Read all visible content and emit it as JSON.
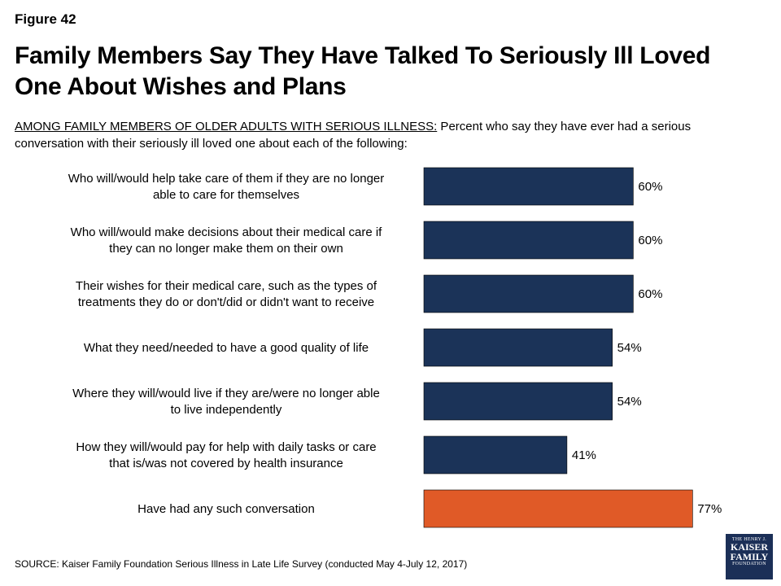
{
  "figure_label": "Figure 42",
  "title": "Family Members Say They Have Talked To Seriously Ill Loved One About Wishes and Plans",
  "subtitle_lead": "AMONG FAMILY MEMBERS OF OLDER ADULTS WITH SERIOUS ILLNESS:",
  "subtitle_rest": " Percent who say they have ever had a serious conversation with their seriously ill loved one about each of the following:",
  "source": "SOURCE: Kaiser Family Foundation Serious Illness in Late Life Survey (conducted May 4-July 12, 2017)",
  "logo": {
    "line1": "THE HENRY J.",
    "line2": "KAISER",
    "line3": "FAMILY",
    "line4": "FOUNDATION"
  },
  "chart_data": {
    "type": "bar",
    "orientation": "horizontal",
    "categories": [
      [
        "Who will/would help take care of them if they are no longer",
        "able to care for themselves"
      ],
      [
        "Who will/would make decisions about their medical care if",
        "they can no longer make them on their own"
      ],
      [
        "Their wishes for their medical care, such as the types of",
        "treatments they do or don't/did or didn't want to receive"
      ],
      [
        "What they need/needed to have a good quality of life"
      ],
      [
        "Where they will/would live if they are/were no longer able",
        "to live independently"
      ],
      [
        "How they will/would pay for help with daily tasks or care",
        "that is/was not covered by health insurance"
      ],
      [
        "Have had any such conversation"
      ]
    ],
    "values": [
      60,
      60,
      60,
      54,
      54,
      41,
      77
    ],
    "value_labels": [
      "60%",
      "60%",
      "60%",
      "54%",
      "54%",
      "41%",
      "77%"
    ],
    "colors": [
      "#1b3358",
      "#1b3358",
      "#1b3358",
      "#1b3358",
      "#1b3358",
      "#1b3358",
      "#e05a27"
    ],
    "xlim": [
      0,
      100
    ],
    "grid": false,
    "legend": "none"
  }
}
